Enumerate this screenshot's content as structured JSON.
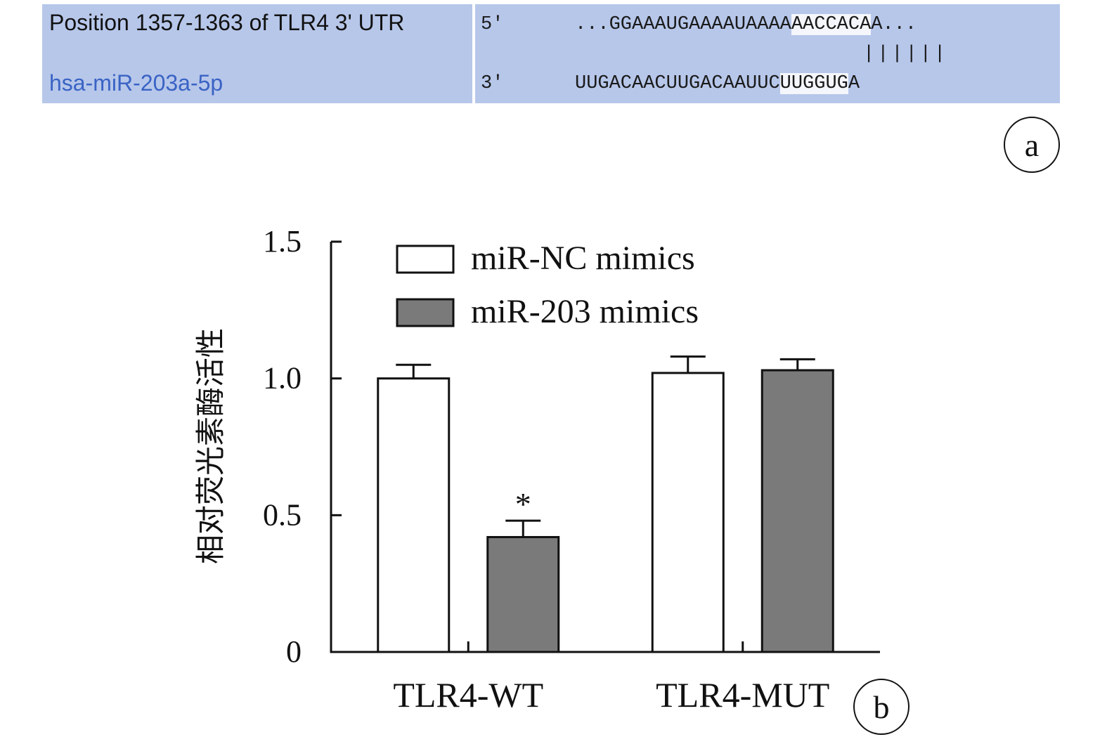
{
  "panel_a": {
    "utr_label": "Position 1357-1363 of TLR4 3' UTR",
    "mir_label": "hsa-miR-203a-5p",
    "utr_end": "5'",
    "mir_end": "3'",
    "utr_seq_prefix": "...GGAAAUGAAAAUAAAA",
    "utr_seq_site": "AACCACA",
    "utr_seq_suffix": "A...",
    "pairing": "||||||",
    "mir_seq_prefix": "UUGACAACUUGACAAUUC",
    "mir_seq_site": "UUGGUG",
    "mir_seq_suffix": "A",
    "tag": "a",
    "colors": {
      "box": "#b7c7ea",
      "mir_text": "#3a63c4",
      "site_highlight": "#f4f6fb"
    }
  },
  "panel_b_tag": "b",
  "chart_data": {
    "type": "bar",
    "categories": [
      "TLR4-WT",
      "TLR4-MUT"
    ],
    "series": [
      {
        "name": "miR-NC mimics",
        "values": [
          1.0,
          1.02
        ],
        "errors": [
          0.05,
          0.06
        ],
        "color": "#ffffff"
      },
      {
        "name": "miR-203 mimics",
        "values": [
          0.42,
          1.03
        ],
        "errors": [
          0.06,
          0.04
        ],
        "color": "#7a7a7a"
      }
    ],
    "annotations": [
      {
        "category": 0,
        "series": 1,
        "text": "*"
      }
    ],
    "ylabel": "相对荧光素酶活性",
    "xlabel": "",
    "ylim": [
      0,
      1.5
    ],
    "yticks": [
      0,
      0.5,
      1.0,
      1.5
    ],
    "ytick_labels": [
      "0",
      "0.5",
      "1.0",
      "1.5"
    ],
    "legend_position": "top-left",
    "grid": false
  }
}
